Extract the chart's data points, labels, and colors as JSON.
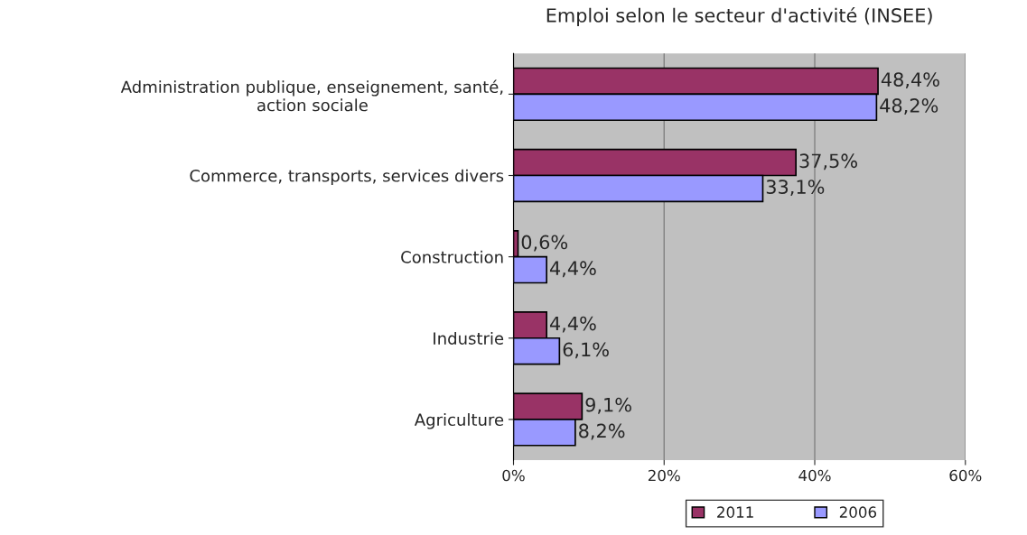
{
  "chart_data": {
    "type": "bar",
    "orientation": "horizontal",
    "title": "Emploi selon le secteur d'activité (INSEE)",
    "categories": [
      "Administration publique, enseignement, santé,\naction sociale",
      "Commerce, transports, services divers",
      "Construction",
      "Industrie",
      "Agriculture"
    ],
    "series": [
      {
        "name": "2011",
        "color": "#993366",
        "values": [
          48.4,
          37.5,
          0.6,
          4.4,
          9.1
        ],
        "value_labels": [
          "48,4%",
          "37,5%",
          "0,6%",
          "4,4%",
          "9,1%"
        ]
      },
      {
        "name": "2006",
        "color": "#9999ff",
        "values": [
          48.2,
          33.1,
          4.4,
          6.1,
          8.2
        ],
        "value_labels": [
          "48,2%",
          "33,1%",
          "4,4%",
          "6,1%",
          "8,2%"
        ]
      }
    ],
    "xlim": [
      0,
      60
    ],
    "xticks": [
      {
        "value": 0,
        "label": "0%"
      },
      {
        "value": 20,
        "label": "20%"
      },
      {
        "value": 40,
        "label": "40%"
      },
      {
        "value": 60,
        "label": "60%"
      }
    ],
    "grid": "x",
    "legend": "bottom"
  }
}
